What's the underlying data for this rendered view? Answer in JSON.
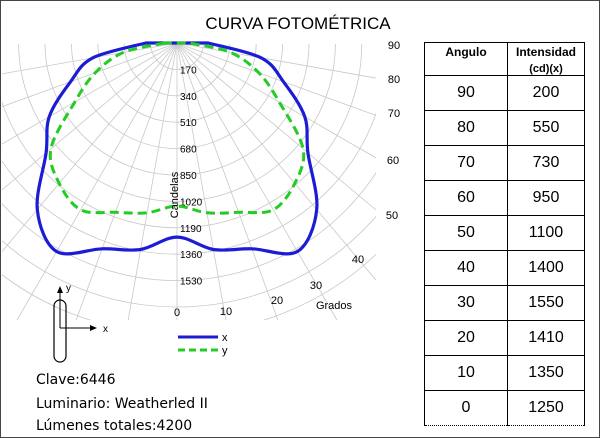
{
  "title": "CURVA FOTOMÉTRICA",
  "table": {
    "headers": [
      "Angulo",
      "Intensidad"
    ],
    "header_sub": "(cd)(x)",
    "rows": [
      [
        "90",
        "200"
      ],
      [
        "80",
        "550"
      ],
      [
        "70",
        "730"
      ],
      [
        "60",
        "950"
      ],
      [
        "50",
        "1100"
      ],
      [
        "40",
        "1400"
      ],
      [
        "30",
        "1550"
      ],
      [
        "20",
        "1410"
      ],
      [
        "10",
        "1350"
      ],
      [
        "0",
        "1250"
      ]
    ]
  },
  "info": {
    "clave": "Clave:6446",
    "luminario": "Luminario: Weatherled II",
    "lumenes": "Lúmenes totales:4200"
  },
  "legend": {
    "x": "x",
    "y": "y"
  },
  "axis_icon": {
    "x": "x",
    "y": "y"
  },
  "colors": {
    "x": "#1c1cd6",
    "y": "#22cc22",
    "grid": "#c8c8c8"
  },
  "chart_data": {
    "type": "polar-line",
    "title": "CURVA FOTOMÉTRICA",
    "radial_label": "Candelas",
    "angle_label": "Grados",
    "radial_ticks": [
      170,
      340,
      510,
      680,
      850,
      1020,
      1190,
      1360,
      1530
    ],
    "angle_ticks": [
      "0",
      "10",
      "20",
      "30",
      "40",
      "50",
      "60",
      "70",
      "80",
      "90"
    ],
    "rlim": [
      0,
      1700
    ],
    "series": [
      {
        "name": "x",
        "angles": [
          0,
          10,
          20,
          30,
          40,
          50,
          60,
          70,
          80,
          90
        ],
        "values": [
          1250,
          1350,
          1410,
          1550,
          1400,
          1100,
          950,
          730,
          550,
          200
        ]
      },
      {
        "name": "y",
        "angles": [
          0,
          10,
          20,
          30,
          40,
          50,
          60,
          70,
          80,
          90
        ],
        "values": [
          1050,
          1110,
          1160,
          1240,
          1180,
          1060,
          760,
          560,
          350,
          80
        ]
      }
    ]
  }
}
